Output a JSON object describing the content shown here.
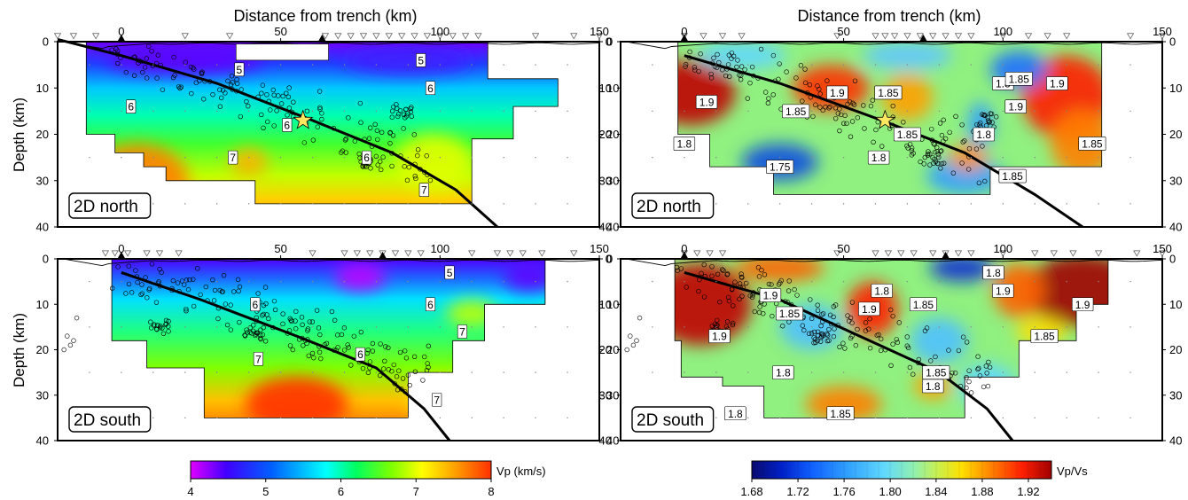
{
  "figure": {
    "x_axis_title": "Distance from trench (km)",
    "y_axis_title": "Depth (km)",
    "x_ticks": [
      0,
      50,
      100,
      150
    ],
    "y_ticks": [
      0,
      10,
      20,
      30,
      40
    ]
  },
  "colorbars": {
    "vp": {
      "label": "Vp (km/s)",
      "range": [
        4,
        8
      ],
      "ticks": [
        "4",
        "5",
        "6",
        "7",
        "8"
      ],
      "colors": [
        "#e000ff",
        "#4000ff",
        "#0060ff",
        "#00ffff",
        "#00ff60",
        "#80ff00",
        "#ffff00",
        "#ffa000",
        "#ff3000"
      ]
    },
    "vpvs": {
      "label": "Vp/Vs",
      "range": [
        1.68,
        1.94
      ],
      "ticks": [
        "1.68",
        "1.72",
        "1.76",
        "1.80",
        "1.84",
        "1.88",
        "1.92"
      ],
      "colors": [
        "#0a0a6e",
        "#0020c8",
        "#1060ff",
        "#30a0ff",
        "#60d8ff",
        "#90f0b0",
        "#c8f050",
        "#ffe000",
        "#ff8000",
        "#ff2000",
        "#a00000"
      ]
    }
  },
  "chart_data": [
    {
      "type": "heatmap",
      "panel": "Vp 2D north",
      "panel_label": "2D north",
      "variable": "Vp (km/s)",
      "xlim": [
        -20,
        150
      ],
      "ylim": [
        0,
        40
      ],
      "surface_topography_km": [
        0,
        0
      ],
      "contours": [
        {
          "value": "5",
          "label_at": [
            37,
            6
          ]
        },
        {
          "value": "5",
          "label_at": [
            94,
            4
          ]
        },
        {
          "value": "6",
          "label_at": [
            97,
            10
          ]
        },
        {
          "value": "6",
          "label_at": [
            3,
            14
          ]
        },
        {
          "value": "6",
          "label_at": [
            52,
            18
          ]
        },
        {
          "value": "7",
          "label_at": [
            35,
            25
          ]
        },
        {
          "value": "6",
          "label_at": [
            77,
            25
          ]
        },
        {
          "value": "7",
          "label_at": [
            95,
            32
          ]
        }
      ],
      "stations_marked": [
        {
          "x": 0,
          "y": 0
        },
        {
          "x": 63,
          "y": 0
        }
      ],
      "mainshock_star": {
        "x": 57,
        "y": 17
      }
    },
    {
      "type": "heatmap",
      "panel": "Vp/Vs 2D north",
      "panel_label": "2D north",
      "variable": "Vp/Vs",
      "xlim": [
        -20,
        150
      ],
      "ylim": [
        0,
        40
      ],
      "contours": [
        {
          "value": "1.9",
          "label_at": [
            7,
            13
          ]
        },
        {
          "value": "1.9",
          "label_at": [
            48,
            11
          ]
        },
        {
          "value": "1.85",
          "label_at": [
            64,
            11
          ]
        },
        {
          "value": "1.85",
          "label_at": [
            35,
            15
          ]
        },
        {
          "value": "1.8",
          "label_at": [
            100,
            9
          ]
        },
        {
          "value": "1.85",
          "label_at": [
            105,
            8
          ]
        },
        {
          "value": "1.9",
          "label_at": [
            117,
            9
          ]
        },
        {
          "value": "1.9",
          "label_at": [
            104,
            14
          ]
        },
        {
          "value": "1.85",
          "label_at": [
            70,
            20
          ]
        },
        {
          "value": "1.8",
          "label_at": [
            94,
            20
          ]
        },
        {
          "value": "1.8",
          "label_at": [
            0,
            22
          ]
        },
        {
          "value": "1.8",
          "label_at": [
            61,
            25
          ]
        },
        {
          "value": "1.75",
          "label_at": [
            30,
            27
          ]
        },
        {
          "value": "1.85",
          "label_at": [
            103,
            29
          ]
        },
        {
          "value": "1.85",
          "label_at": [
            128,
            22
          ]
        }
      ],
      "stations_marked": [
        {
          "x": 0,
          "y": 0
        },
        {
          "x": 75,
          "y": 0
        }
      ],
      "mainshock_star": {
        "x": 63,
        "y": 17
      }
    },
    {
      "type": "heatmap",
      "panel": "Vp 2D south",
      "panel_label": "2D south",
      "variable": "Vp (km/s)",
      "xlim": [
        -20,
        150
      ],
      "ylim": [
        0,
        40
      ],
      "contours": [
        {
          "value": "5",
          "label_at": [
            103,
            3
          ]
        },
        {
          "value": "6",
          "label_at": [
            42,
            10
          ]
        },
        {
          "value": "6",
          "label_at": [
            97,
            10
          ]
        },
        {
          "value": "7",
          "label_at": [
            107,
            16
          ]
        },
        {
          "value": "7",
          "label_at": [
            43,
            22
          ]
        },
        {
          "value": "6",
          "label_at": [
            75,
            21
          ]
        },
        {
          "value": "7",
          "label_at": [
            99,
            31
          ]
        }
      ],
      "stations_marked": [
        {
          "x": 0,
          "y": 0
        },
        {
          "x": 82,
          "y": 0
        }
      ]
    },
    {
      "type": "heatmap",
      "panel": "Vp/Vs 2D south",
      "panel_label": "2D south",
      "variable": "Vp/Vs",
      "xlim": [
        -20,
        150
      ],
      "ylim": [
        0,
        40
      ],
      "contours": [
        {
          "value": "1.9",
          "label_at": [
            27,
            8
          ]
        },
        {
          "value": "1.85",
          "label_at": [
            33,
            12
          ]
        },
        {
          "value": "1.8",
          "label_at": [
            62,
            7
          ]
        },
        {
          "value": "1.9",
          "label_at": [
            58,
            11
          ]
        },
        {
          "value": "1.85",
          "label_at": [
            75,
            10
          ]
        },
        {
          "value": "1.8",
          "label_at": [
            97,
            3
          ]
        },
        {
          "value": "1.9",
          "label_at": [
            100,
            7
          ]
        },
        {
          "value": "1.9",
          "label_at": [
            125,
            10
          ]
        },
        {
          "value": "1.85",
          "label_at": [
            113,
            17
          ]
        },
        {
          "value": "1.9",
          "label_at": [
            11,
            17
          ]
        },
        {
          "value": "1.8",
          "label_at": [
            31,
            25
          ]
        },
        {
          "value": "1.85",
          "label_at": [
            79,
            25
          ]
        },
        {
          "value": "1.8",
          "label_at": [
            78,
            28
          ]
        },
        {
          "value": "1.8",
          "label_at": [
            16,
            34
          ]
        },
        {
          "value": "1.85",
          "label_at": [
            49,
            34
          ]
        }
      ],
      "stations_marked": [
        {
          "x": 0,
          "y": 0
        },
        {
          "x": 82,
          "y": 0
        }
      ]
    }
  ]
}
